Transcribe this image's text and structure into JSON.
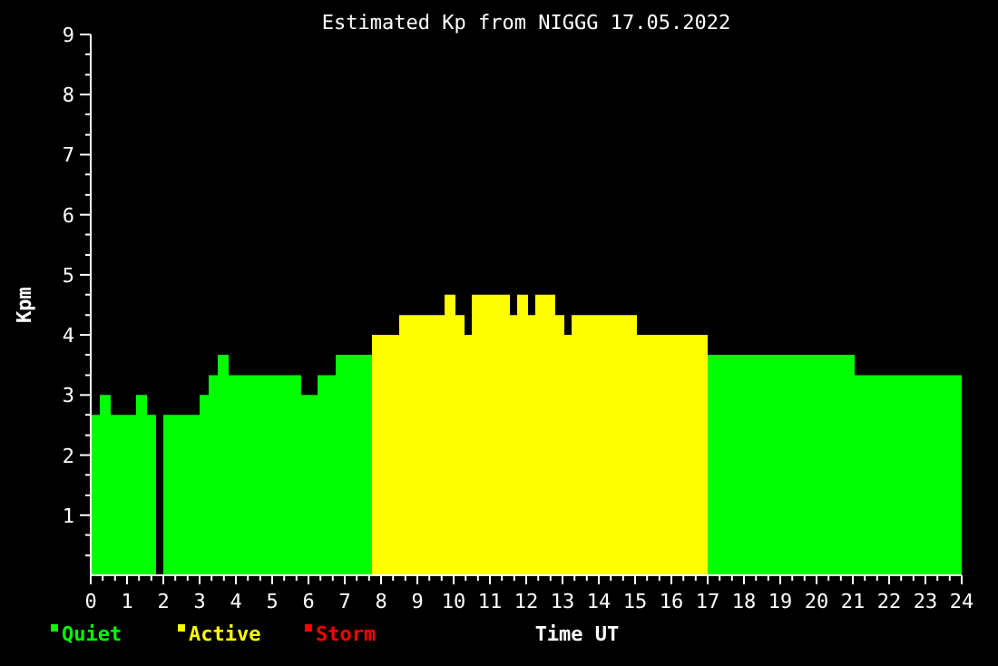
{
  "chart_data": {
    "type": "area",
    "title": "Estimated Kp from NIGGG 17.05.2022",
    "xlabel": "Time UT",
    "ylabel": "Kpm",
    "x": [
      0,
      0.25,
      0.55,
      1.25,
      1.55,
      1.8,
      2.0,
      3.0,
      3.25,
      3.5,
      3.8,
      5.8,
      6.25,
      6.75,
      7.75,
      8.5,
      9.75,
      10.05,
      10.3,
      10.5,
      11.55,
      11.75,
      12.05,
      12.25,
      12.8,
      13.05,
      13.25,
      15.05,
      17.0,
      21.05,
      24
    ],
    "series": [
      {
        "name": "Quiet",
        "color": "#00ff00",
        "values": [
          2.67,
          3.0,
          2.67,
          3.0,
          2.67,
          null,
          2.67,
          3.0,
          3.33,
          3.67,
          3.33,
          3.0,
          3.33,
          3.67,
          3.67,
          null,
          null,
          null,
          null,
          null,
          null,
          null,
          null,
          null,
          null,
          null,
          null,
          null,
          3.67,
          3.33,
          3.33
        ]
      },
      {
        "name": "Active",
        "color": "#ffff00",
        "values": [
          null,
          null,
          null,
          null,
          null,
          null,
          null,
          null,
          null,
          null,
          null,
          null,
          null,
          null,
          4.0,
          4.33,
          4.67,
          4.33,
          4.0,
          4.67,
          4.33,
          4.67,
          4.33,
          4.67,
          4.33,
          4.0,
          4.33,
          4.0,
          4.0,
          null,
          null
        ]
      },
      {
        "name": "Storm",
        "color": "#ff0000",
        "values": [
          null,
          null,
          null,
          null,
          null,
          null,
          null,
          null,
          null,
          null,
          null,
          null,
          null,
          null,
          null,
          null,
          null,
          null,
          null,
          null,
          null,
          null,
          null,
          null,
          null,
          null,
          null,
          null,
          null,
          null,
          null
        ]
      }
    ],
    "xlim": [
      0,
      24
    ],
    "xticks": [
      0,
      {
        "value": 0.33,
        "label": null
      },
      {
        "value": 0.67,
        "label": null
      },
      1,
      {
        "value": 1.33,
        "label": null
      },
      {
        "value": 1.67,
        "label": null
      },
      2,
      {
        "value": 2.33,
        "label": null
      },
      {
        "value": 2.67,
        "label": null
      },
      3,
      {
        "value": 3.33,
        "label": null
      },
      {
        "value": 3.67,
        "label": null
      },
      4,
      {
        "value": 4.33,
        "label": null
      },
      {
        "value": 4.67,
        "label": null
      },
      5,
      {
        "value": 5.33,
        "label": null
      },
      {
        "value": 5.67,
        "label": null
      },
      6,
      {
        "value": 6.33,
        "label": null
      },
      {
        "value": 6.67,
        "label": null
      },
      7,
      {
        "value": 7.33,
        "label": null
      },
      {
        "value": 7.67,
        "label": null
      },
      8,
      {
        "value": 8.33,
        "label": null
      },
      {
        "value": 8.67,
        "label": null
      },
      9,
      {
        "value": 9.33,
        "label": null
      },
      {
        "value": 9.67,
        "label": null
      },
      10,
      {
        "value": 10.33,
        "label": null
      },
      {
        "value": 10.67,
        "label": null
      },
      11,
      {
        "value": 11.33,
        "label": null
      },
      {
        "value": 11.67,
        "label": null
      },
      12,
      {
        "value": 12.33,
        "label": null
      },
      {
        "value": 12.67,
        "label": null
      },
      13,
      {
        "value": 13.33,
        "label": null
      },
      {
        "value": 13.67,
        "label": null
      },
      14,
      {
        "value": 14.33,
        "label": null
      },
      {
        "value": 14.67,
        "label": null
      },
      15,
      {
        "value": 15.33,
        "label": null
      },
      {
        "value": 15.67,
        "label": null
      },
      16,
      {
        "value": 16.33,
        "label": null
      },
      {
        "value": 16.67,
        "label": null
      },
      17,
      {
        "value": 17.33,
        "label": null
      },
      {
        "value": 17.67,
        "label": null
      },
      18,
      {
        "value": 18.33,
        "label": null
      },
      {
        "value": 18.67,
        "label": null
      },
      19,
      {
        "value": 19.33,
        "label": null
      },
      {
        "value": 19.67,
        "label": null
      },
      20,
      {
        "value": 20.33,
        "label": null
      },
      {
        "value": 20.67,
        "label": null
      },
      21,
      {
        "value": 21.33,
        "label": null
      },
      {
        "value": 21.67,
        "label": null
      },
      22,
      {
        "value": 22.33,
        "label": null
      },
      {
        "value": 22.67,
        "label": null
      },
      23,
      {
        "value": 23.33,
        "label": null
      },
      {
        "value": 23.67,
        "label": null
      },
      24
    ],
    "ylim": [
      0,
      9
    ],
    "yticks": [
      {
        "value": 0.33,
        "label": null
      },
      {
        "value": 0.67,
        "label": null
      },
      1,
      {
        "value": 1.33,
        "label": null
      },
      {
        "value": 1.67,
        "label": null
      },
      2,
      {
        "value": 2.33,
        "label": null
      },
      {
        "value": 2.67,
        "label": null
      },
      3,
      {
        "value": 3.33,
        "label": null
      },
      {
        "value": 3.67,
        "label": null
      },
      4,
      {
        "value": 4.33,
        "label": null
      },
      {
        "value": 4.67,
        "label": null
      },
      5,
      {
        "value": 5.33,
        "label": null
      },
      {
        "value": 5.67,
        "label": null
      },
      6,
      {
        "value": 6.33,
        "label": null
      },
      {
        "value": 6.67,
        "label": null
      },
      7,
      {
        "value": 7.33,
        "label": null
      },
      {
        "value": 7.67,
        "label": null
      },
      8,
      {
        "value": 8.33,
        "label": null
      },
      {
        "value": 8.67,
        "label": null
      },
      9
    ],
    "grid": false,
    "legend": "bottom left"
  }
}
